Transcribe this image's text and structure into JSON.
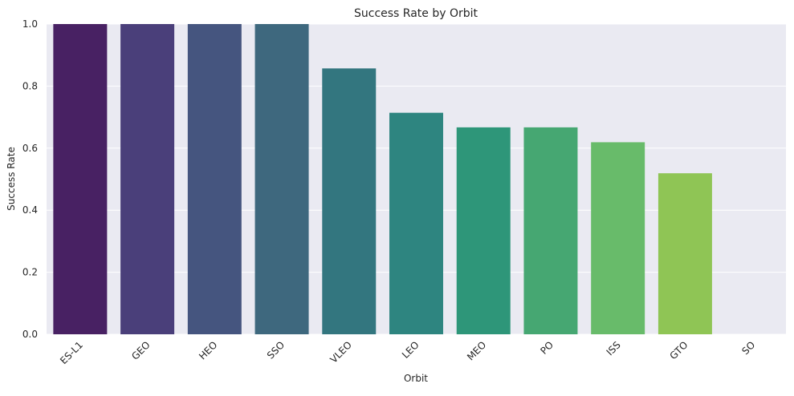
{
  "chart_data": {
    "type": "bar",
    "title": "Success Rate by Orbit",
    "xlabel": "Orbit",
    "ylabel": "Success Rate",
    "ylim": [
      0,
      1
    ],
    "yticks": [
      "0.0",
      "0.2",
      "0.4",
      "0.6",
      "0.8",
      "1.0"
    ],
    "grid": true,
    "categories": [
      "ES-L1",
      "GEO",
      "HEO",
      "SSO",
      "VLEO",
      "LEO",
      "MEO",
      "PO",
      "ISS",
      "GTO",
      "SO"
    ],
    "values": [
      1.0,
      1.0,
      1.0,
      1.0,
      0.857,
      0.714,
      0.667,
      0.667,
      0.619,
      0.519,
      0.0
    ],
    "colors": [
      "#482163",
      "#4a3f7a",
      "#45557f",
      "#3e687e",
      "#33767f",
      "#2e8580",
      "#2e9679",
      "#46a772",
      "#68bb6a",
      "#8fc555",
      "#cde11d"
    ]
  },
  "style": {
    "plot_background": "#eaeaf2",
    "grid_color": "#ffffff"
  }
}
